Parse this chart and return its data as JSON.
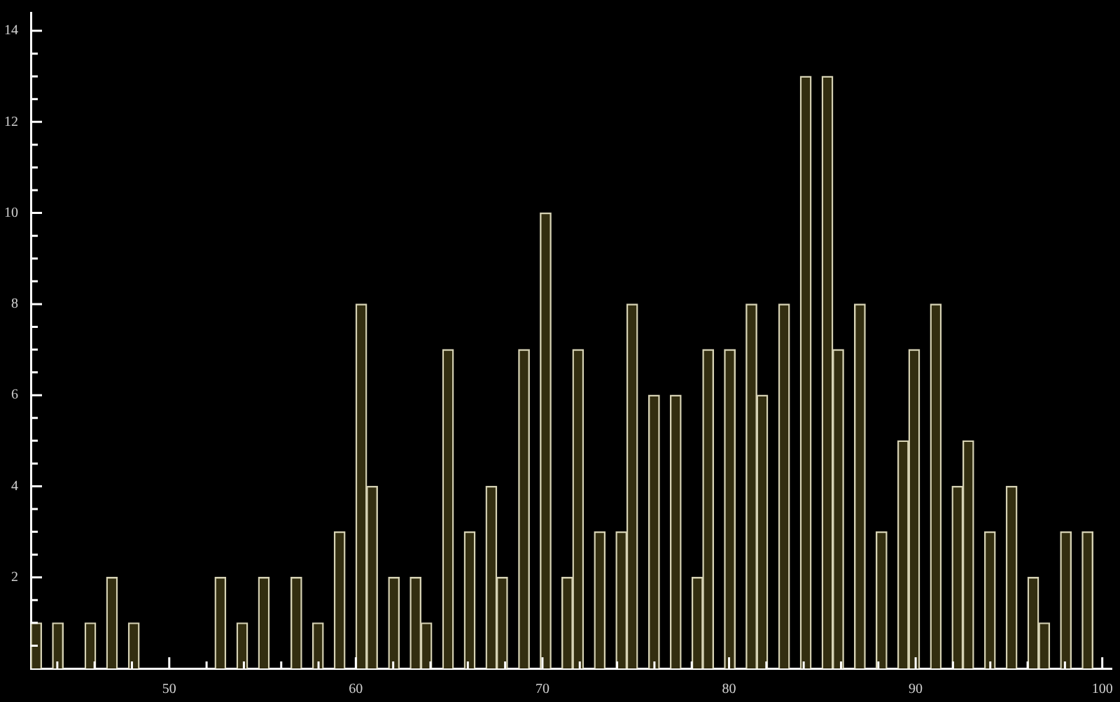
{
  "chart_data": {
    "type": "bar",
    "x": [
      42.87,
      44.03,
      45.77,
      46.93,
      48.1,
      52.74,
      53.91,
      55.07,
      56.81,
      57.97,
      59.13,
      60.29,
      60.87,
      62.04,
      63.2,
      63.78,
      64.94,
      66.1,
      67.26,
      67.84,
      69.01,
      70.17,
      71.33,
      71.91,
      73.07,
      74.23,
      74.81,
      75.98,
      77.14,
      78.3,
      78.88,
      80.04,
      81.2,
      81.78,
      82.95,
      84.11,
      85.27,
      85.85,
      87.01,
      88.17,
      89.33,
      89.92,
      91.08,
      92.24,
      92.82,
      93.98,
      95.14,
      96.3,
      96.89,
      98.05,
      99.21
    ],
    "values": [
      1,
      1,
      1,
      2,
      1,
      2,
      1,
      2,
      2,
      1,
      3,
      8,
      4,
      2,
      2,
      1,
      7,
      3,
      4,
      2,
      7,
      10,
      2,
      7,
      3,
      3,
      8,
      6,
      6,
      2,
      7,
      7,
      8,
      6,
      8,
      13,
      13,
      7,
      8,
      3,
      5,
      7,
      8,
      4,
      5,
      3,
      4,
      2,
      1,
      3,
      3
    ],
    "color": "#332e10",
    "xlim": [
      42.58,
      100.5
    ],
    "xticks": [
      {
        "value": 44,
        "label": null
      },
      {
        "value": 46,
        "label": null
      },
      {
        "value": 48,
        "label": null
      },
      50,
      {
        "value": 52,
        "label": null
      },
      {
        "value": 54,
        "label": null
      },
      {
        "value": 56,
        "label": null
      },
      {
        "value": 58,
        "label": null
      },
      60,
      {
        "value": 62,
        "label": null
      },
      {
        "value": 64,
        "label": null
      },
      {
        "value": 66,
        "label": null
      },
      {
        "value": 68,
        "label": null
      },
      70,
      {
        "value": 72,
        "label": null
      },
      {
        "value": 74,
        "label": null
      },
      {
        "value": 76,
        "label": null
      },
      {
        "value": 78,
        "label": null
      },
      80,
      {
        "value": 82,
        "label": null
      },
      {
        "value": 84,
        "label": null
      },
      {
        "value": 86,
        "label": null
      },
      {
        "value": 88,
        "label": null
      },
      90,
      {
        "value": 92,
        "label": null
      },
      {
        "value": 94,
        "label": null
      },
      {
        "value": 96,
        "label": null
      },
      {
        "value": 98,
        "label": null
      },
      100
    ],
    "ylim": [
      0,
      14.4
    ],
    "yticks": [
      {
        "value": 0.5,
        "label": null
      },
      {
        "value": 1,
        "label": null
      },
      {
        "value": 1.5,
        "label": null
      },
      2,
      {
        "value": 2.5,
        "label": null
      },
      {
        "value": 3,
        "label": null
      },
      {
        "value": 3.5,
        "label": null
      },
      4,
      {
        "value": 4.5,
        "label": null
      },
      {
        "value": 5,
        "label": null
      },
      {
        "value": 5.5,
        "label": null
      },
      6,
      {
        "value": 6.5,
        "label": null
      },
      {
        "value": 7,
        "label": null
      },
      {
        "value": 7.5,
        "label": null
      },
      8,
      {
        "value": 8.5,
        "label": null
      },
      {
        "value": 9,
        "label": null
      },
      {
        "value": 9.5,
        "label": null
      },
      10,
      {
        "value": 10.5,
        "label": null
      },
      {
        "value": 11,
        "label": null
      },
      {
        "value": 11.5,
        "label": null
      },
      12,
      {
        "value": 12.5,
        "label": null
      },
      {
        "value": 13,
        "label": null
      },
      {
        "value": 13.5,
        "label": null
      },
      14
    ],
    "grid": false,
    "legend": false
  }
}
